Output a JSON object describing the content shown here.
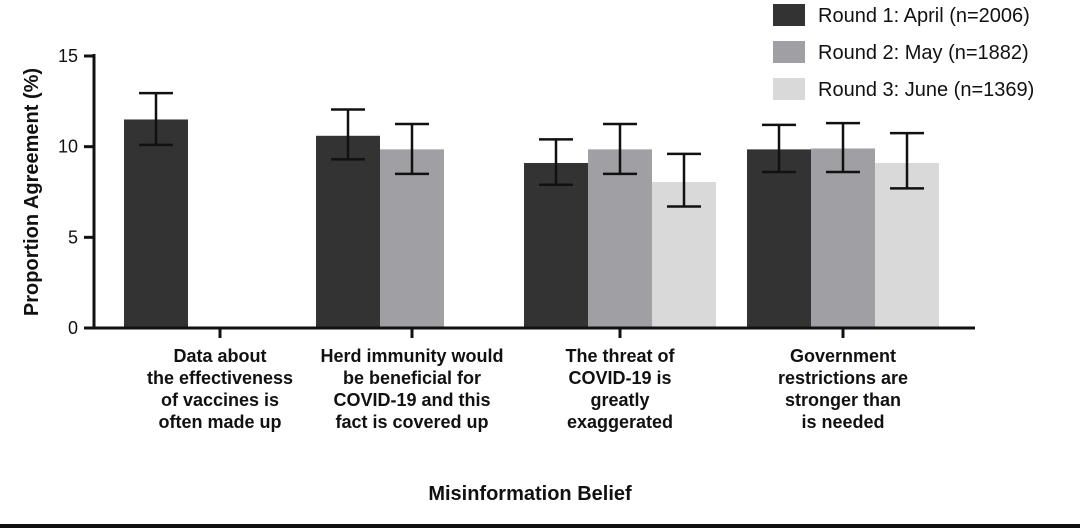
{
  "chart_data": {
    "type": "bar",
    "title": "",
    "xlabel": "Misinformation Belief",
    "ylabel": "Proportion Agreement (%)",
    "ylim": [
      0,
      15
    ],
    "yticks": [
      "0",
      "5",
      "10",
      "15"
    ],
    "categories": [
      [
        "Data about",
        "the effectiveness",
        "of vaccines is",
        "often made up"
      ],
      [
        "Herd immunity would",
        "be beneficial for",
        "COVID-19 and this",
        "fact is covered up"
      ],
      [
        "The threat of",
        "COVID-19 is",
        "greatly",
        "exaggerated"
      ],
      [
        "Government",
        "restrictions are",
        "stronger than",
        "is needed"
      ]
    ],
    "series": [
      {
        "name": "Round 1: April (n=2006)",
        "color": "#333333",
        "values": [
          11.5,
          10.6,
          9.1,
          9.85
        ],
        "err_low": [
          10.1,
          9.3,
          7.9,
          8.6
        ],
        "err_high": [
          12.95,
          12.05,
          10.4,
          11.2
        ]
      },
      {
        "name": "Round 2: May (n=1882)",
        "color": "#a0a0a4",
        "values": [
          null,
          9.85,
          9.85,
          9.9
        ],
        "err_low": [
          null,
          8.5,
          8.5,
          8.6
        ],
        "err_high": [
          null,
          11.25,
          11.25,
          11.3
        ]
      },
      {
        "name": "Round 3: June (n=1369)",
        "color": "#d9d9d9",
        "values": [
          null,
          null,
          8.05,
          9.1
        ],
        "err_low": [
          null,
          null,
          6.7,
          7.7
        ],
        "err_high": [
          null,
          null,
          9.6,
          10.75
        ]
      }
    ],
    "legend_position": "top-right"
  }
}
